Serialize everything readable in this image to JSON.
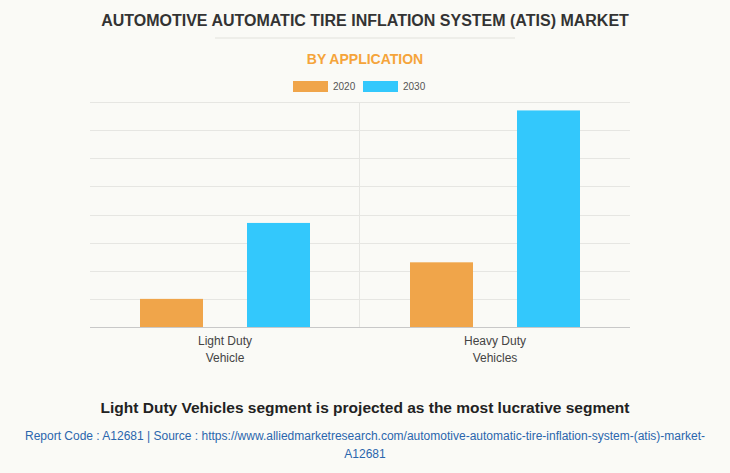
{
  "chart_data": {
    "type": "bar",
    "title": "AUTOMOTIVE AUTOMATIC TIRE INFLATION SYSTEM (ATIS) MARKET",
    "subtitle": "BY APPLICATION",
    "categories": [
      "Light Duty Vehicle",
      "Heavy Duty Vehicles"
    ],
    "series": [
      {
        "name": "2020",
        "color": "#f0a54a",
        "values": [
          1.0,
          2.3
        ]
      },
      {
        "name": "2030",
        "color": "#33c8fc",
        "values": [
          3.7,
          7.7
        ]
      }
    ],
    "ylim": [
      0,
      8
    ],
    "yticks": [
      0,
      1,
      2,
      3,
      4,
      5,
      6,
      7,
      8
    ],
    "grid": true,
    "tick_labels": "x",
    "legend": "top",
    "annotations": [
      "Light Duty Vehicles segment is projected as the most lucrative segment",
      "Report Code : A12681  |  Source : https://www.alliedmarketresearch.com/automotive-automatic-tire-inflation-system-(atis)-market-A12681"
    ]
  }
}
